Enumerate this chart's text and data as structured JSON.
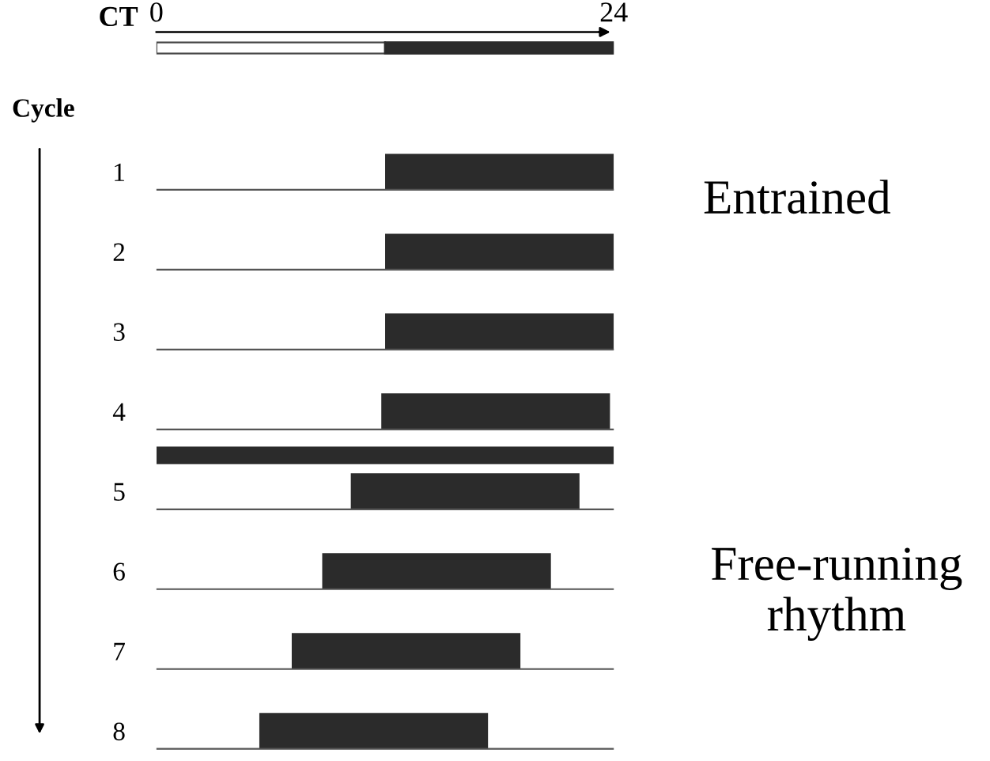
{
  "chart_data": {
    "type": "bar",
    "orientation": "horizontal",
    "xlabel": "CT",
    "ylabel": "Cycle",
    "categories": [
      "1",
      "2",
      "3",
      "4",
      "5",
      "6",
      "7",
      "8"
    ],
    "base": [
      12,
      12,
      12,
      11.8,
      10.2,
      8.7,
      7.1,
      5.4
    ],
    "values": [
      12,
      12,
      12,
      12,
      12,
      12,
      12,
      12
    ],
    "color": "#2b2b2b",
    "xlim": [
      0,
      24
    ],
    "xticks": [
      0,
      24
    ],
    "annotations": [
      "Entrained",
      "Free-running rhythm"
    ],
    "grid": false
  }
}
